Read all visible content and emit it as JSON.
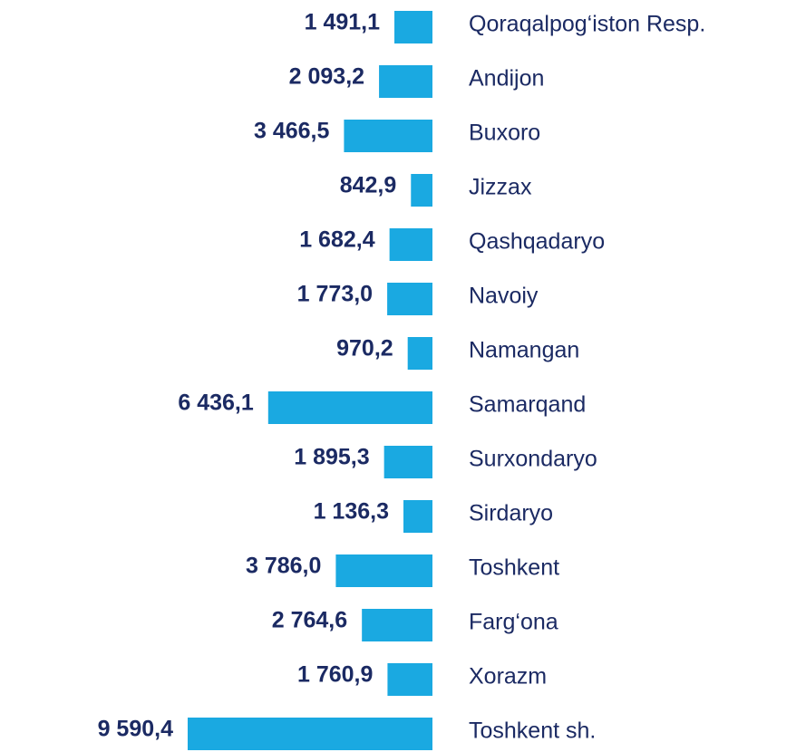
{
  "chart_data": {
    "type": "bar",
    "orientation": "horizontal",
    "color": "#1aa9e1",
    "categories": [
      "Qoraqalpog‘iston Resp.",
      "Andijon",
      "Buxoro",
      "Jizzax",
      "Qashqadaryo",
      "Navoiy",
      "Namangan",
      "Samarqand",
      "Surxondaryo",
      "Sirdaryo",
      "Toshkent",
      "Farg‘ona",
      "Xorazm",
      "Toshkent sh."
    ],
    "values": [
      1491.1,
      2093.2,
      3466.5,
      842.9,
      1682.4,
      1773.0,
      970.2,
      6436.1,
      1895.3,
      1136.3,
      3786.0,
      2764.6,
      1760.9,
      9590.4
    ],
    "value_labels": [
      "1 491,1",
      "2 093,2",
      "3 466,5",
      "842,9",
      "1 682,4",
      "1 773,0",
      "970,2",
      "6 436,1",
      "1 895,3",
      "1 136,3",
      "3 786,0",
      "2 764,6",
      "1 760,9",
      "9 590,4"
    ]
  }
}
